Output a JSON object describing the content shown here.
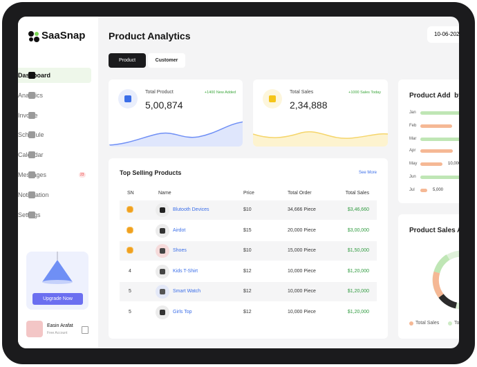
{
  "sidebar": {
    "brand": "SaaSnap",
    "nav": [
      "Dashboard",
      "Analytics",
      "Invoice",
      "Schedule",
      "Calendar",
      "Messages",
      "Notification",
      "Settings"
    ],
    "badge": "23",
    "upgrade": "Upgrade Now",
    "user": {
      "name": "Easin Arafat",
      "plan": "Free Account"
    }
  },
  "header": {
    "title": "Product Analytics",
    "date": "10-06-202",
    "tabs": [
      "Product",
      "Customer"
    ]
  },
  "cards": [
    {
      "label": "Total Product",
      "note": "+1400 New Added",
      "value": "5,00,874"
    },
    {
      "label": "Total Sales",
      "note": "+1000 Sales Today",
      "value": "2,34,888"
    }
  ],
  "monthly": {
    "title": "Product Add  by",
    "months": [
      "Jan",
      "Feb",
      "Mar",
      "Apr",
      "May",
      "Jun",
      "Jul"
    ],
    "labels": [
      "10,000",
      "5,000"
    ]
  },
  "sales": {
    "title": "Product Sales A",
    "legend": [
      "Total Sales",
      "To"
    ]
  },
  "table": {
    "title": "Top Selling Products",
    "link": "See More",
    "columns": [
      "SN",
      "Name",
      "Price",
      "Total Order",
      "Total Sales"
    ],
    "rows": [
      [
        null,
        "Blutooth Devices",
        "$10",
        "34,666 Piece",
        "$3,46,660"
      ],
      [
        null,
        "Airdot",
        "$15",
        "20,000 Piece",
        "$3,00,000"
      ],
      [
        null,
        "Shoes",
        "$10",
        "15,000 Piece",
        "$1,50,000"
      ],
      [
        "4",
        "Kids T-Shirt",
        "$12",
        "10,000 Piece",
        "$1,20,000"
      ],
      [
        "5",
        "Smart Watch",
        "$12",
        "10,000 Piece",
        "$1,20,000"
      ],
      [
        "5",
        "Girls Top",
        "$12",
        "10,000 Piece",
        "$1,20,000"
      ]
    ]
  }
}
